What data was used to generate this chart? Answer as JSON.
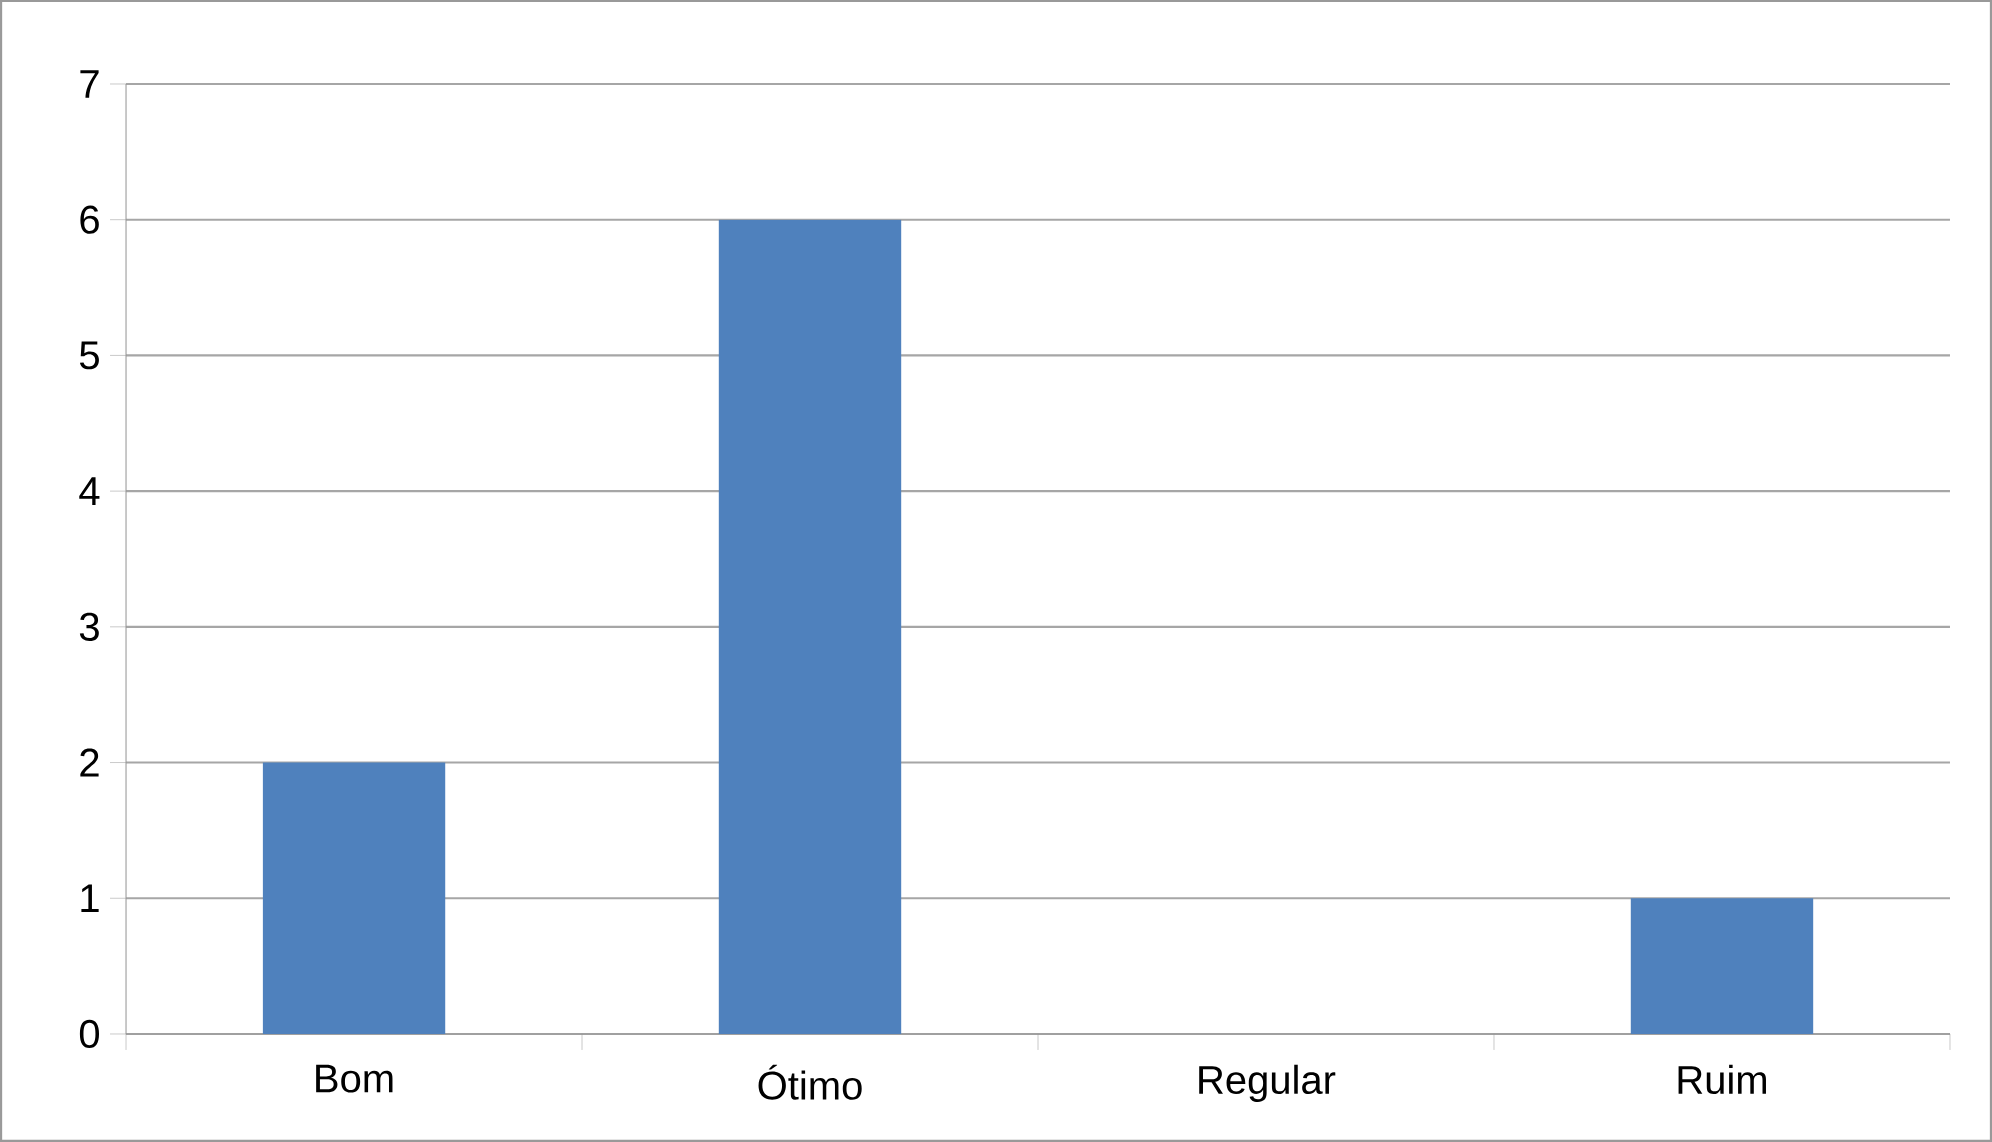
{
  "chart_data": {
    "type": "bar",
    "categories": [
      "Bom",
      "Ótimo",
      "Regular",
      "Ruim"
    ],
    "values": [
      2,
      6,
      0,
      1
    ],
    "color": "#4f81bd",
    "ylim": [
      0,
      7
    ],
    "yticks": [
      0,
      1,
      2,
      3,
      4,
      5,
      6,
      7
    ],
    "grid": "y"
  }
}
